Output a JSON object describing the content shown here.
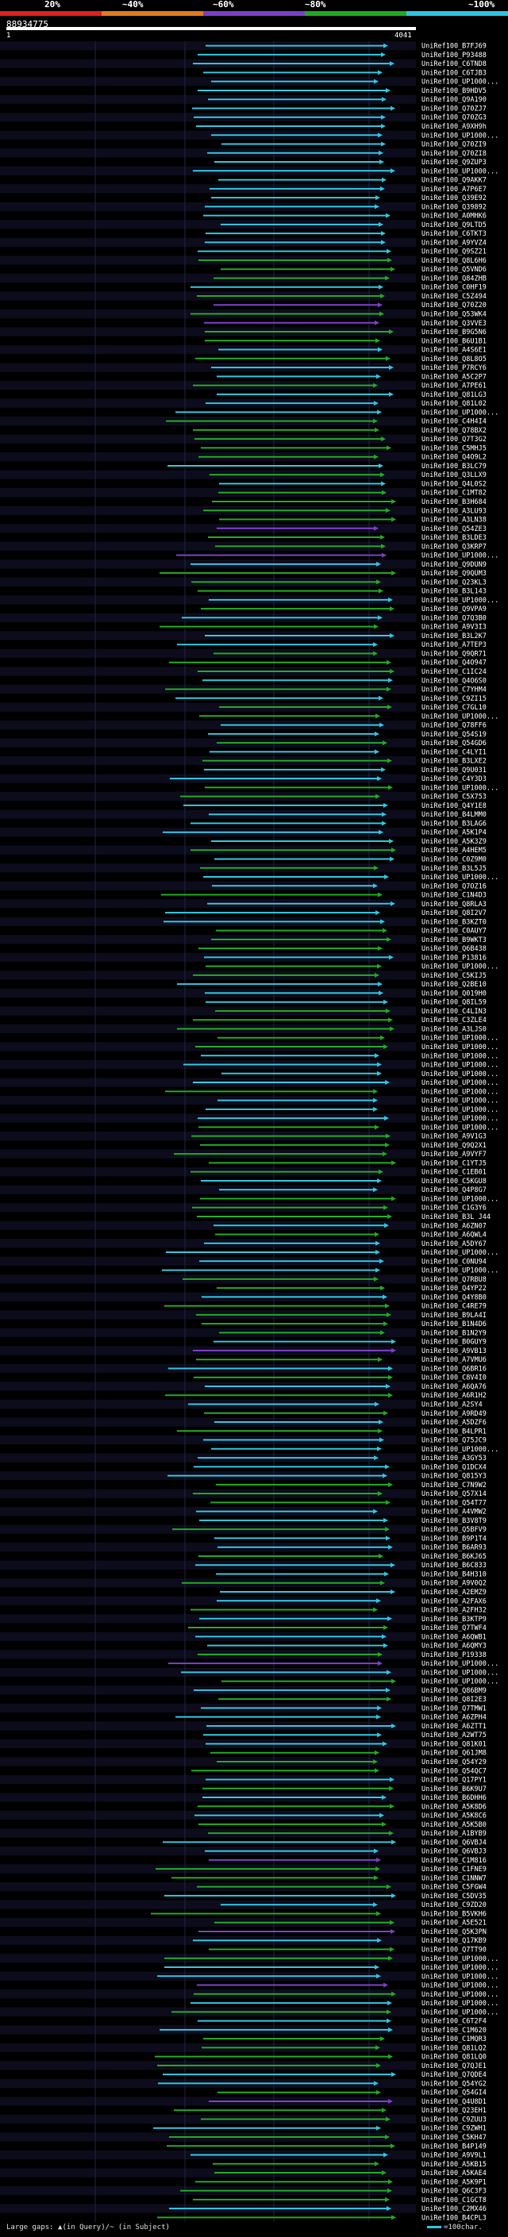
{
  "header": {
    "scale_labels": [
      "20%",
      "~40%",
      "~60%",
      "~80%",
      "~100%"
    ],
    "scale_colors": [
      "#e0201e",
      "#e07a1e",
      "#7a3fc8",
      "#22a822",
      "#2ec4e0"
    ],
    "query_id": "88934775",
    "axis_start": "1",
    "axis_end": "4041"
  },
  "footer": {
    "gaps_text": "Large gaps: ▲(in Query)/~ (in Subject)",
    "legend_text": "=100char."
  },
  "chart_data": {
    "type": "alignment-overview",
    "query_length": 4041,
    "x_range": [
      1,
      4041
    ],
    "identity_bins": [
      "<=20%",
      "~40%",
      "~60%",
      "~80%",
      "~100%"
    ],
    "hits": [
      "UniRef100_B7FJ69",
      "UniRef100_P93488",
      "UniRef100_C6TND8",
      "UniRef100_C6TJB3",
      "UniRef100_UP1000...",
      "UniRef100_B9HDV5",
      "UniRef100_Q9A190",
      "UniRef100_Q70ZJ7",
      "UniRef100_Q70ZG3",
      "UniRef100_A9XH9h",
      "UniRef100_UP1000...",
      "UniRef100_Q70ZI9",
      "UniRef100_Q70ZI8",
      "UniRef100_Q9ZUP3",
      "UniRef100_UP1000...",
      "UniRef100_Q9AKK7",
      "UniRef100_A7P6E7",
      "UniRef100_Q39E92",
      "UniRef100_Q39892",
      "UniRef100_A0MHK6",
      "UniRef100_Q9LTD5",
      "UniRef100_C6TKT3",
      "UniRef100_A9YVZ4",
      "UniRef100_Q9SZ21",
      "UniRef100_Q8L6H6",
      "UniRef100_Q5VND6",
      "UniRef100_Q84ZHB",
      "UniRef100_C0HF19",
      "UniRef100_C5Z494",
      "UniRef100_Q70Z20",
      "UniRef100_Q53WK4",
      "UniRef100_Q3VVE3",
      "UniRef100_B9G5N6",
      "UniRef100_B6U1B1",
      "UniRef100_A4S6E1",
      "UniRef100_Q8L8O5",
      "UniRef100_P7RCY6",
      "UniRef100_A5C2P7",
      "UniRef100_A7PE61",
      "UniRef100_Q81LG3",
      "UniRef100_Q81L02",
      "UniRef100_UP1000...",
      "UniRef100_C4H4I4",
      "UniRef100_Q78BX2",
      "UniRef100_Q7T3G2",
      "UniRef100_C5MHJ5",
      "UniRef100_Q4O9L2",
      "UniRef100_B3LC79",
      "UniRef100_Q3LLX9",
      "UniRef100_Q4L0S2",
      "UniRef100_C1MT82",
      "UniRef100_B3H684",
      "UniRef100_A3LU93",
      "UniRef100_A3LN38",
      "UniRef100_Q54ZE3",
      "UniRef100_B3LDE3",
      "UniRef100_Q3KRP7",
      "UniRef100_UP1000...",
      "UniRef100_Q9DUN9",
      "UniRef100_Q9QUM3",
      "UniRef100_Q23KL3",
      "UniRef100_B3L143",
      "UniRef100_UP1000...",
      "UniRef100_Q9VPA9",
      "UniRef100_Q7Q3B0",
      "UniRef100_A9V3I3",
      "UniRef100_B3L2K7",
      "UniRef100_A7TEP3",
      "UniRef100_Q9QR71",
      "UniRef100_Q4O947",
      "UniRef100_C1IC24",
      "UniRef100_Q4O6S0",
      "UniRef100_C7YHM4",
      "UniRef100_C9ZI15",
      "UniRef100_C7GL10",
      "UniRef100_UP1000...",
      "UniRef100_Q78FF6",
      "UniRef100_Q54S19",
      "UniRef100_Q54GD6",
      "UniRef100_C4LYI1",
      "UniRef100_B3LXE2",
      "UniRef100_Q9U031",
      "UniRef100_C4Y3D3",
      "UniRef100_UP1000...",
      "UniRef100_C5X753",
      "UniRef100_Q4Y1E8",
      "UniRef100_B4LMM0",
      "UniRef100_B3LAG6",
      "UniRef100_A5K1P4",
      "UniRef100_A5K3Z9",
      "UniRef100_A4HEM5",
      "UniRef100_C0Z9M0",
      "UniRef100_B3L5J5",
      "UniRef100_UP1000...",
      "UniRef100_Q7OZ16",
      "UniRef100_C1N4D3",
      "UniRef100_Q8RLA3",
      "UniRef100_Q8I2V7",
      "UniRef100_B3KZT0",
      "UniRef100_C0AUY7",
      "UniRef100_B9WKT3",
      "UniRef100_Q6B438",
      "UniRef100_P13816",
      "UniRef100_UP1000...",
      "UniRef100_C5KIJ5",
      "UniRef100_Q2BE10",
      "UniRef100_Q019H0",
      "UniRef100_Q8IL59",
      "UniRef100_C4LIN3",
      "UniRef100_C3ZLE4",
      "UniRef100_A3LJS0",
      "UniRef100_UP1000...",
      "UniRef100_UP1000...",
      "UniRef100_UP1000...",
      "UniRef100_UP1000...",
      "UniRef100_UP1000...",
      "UniRef100_UP1000...",
      "UniRef100_UP1000...",
      "UniRef100_UP1000...",
      "UniRef100_UP1000...",
      "UniRef100_UP1000...",
      "UniRef100_UP1000...",
      "UniRef100_A9V1G3",
      "UniRef100_Q9Q2X1",
      "UniRef100_A9VYF7",
      "UniRef100_C1YTJ5",
      "UniRef100_C1EB01",
      "UniRef100_C5KGU8",
      "UniRef100_Q4P8G7",
      "UniRef100_UP1000...",
      "UniRef100_C1G3Y6",
      "UniRef100_B3L J44",
      "UniRef100_A6ZN07",
      "UniRef100_A6QWL4",
      "UniRef100_A5DY67",
      "UniRef100_UP1000...",
      "UniRef100_C0NU94",
      "UniRef100_UP1000...",
      "UniRef100_Q7RBU8",
      "UniRef100_Q4YP22",
      "UniRef100_Q4Y8B0",
      "UniRef100_C4RE79",
      "UniRef100_B9LA4I",
      "UniRef100_B1N4D6",
      "UniRef100_B1N2Y9",
      "UniRef100_B0GUY9",
      "UniRef100_A9VB13",
      "UniRef100_A7VMU6",
      "UniRef100_Q6BR16",
      "UniRef100_C8V4I0",
      "UniRef100_A6QA76",
      "UniRef100_A6R1H2",
      "UniRef100_A2SY4",
      "UniRef100_A9RD49",
      "UniRef100_A5DZF6",
      "UniRef100_B4LPR1",
      "UniRef100_Q75JC9",
      "UniRef100_UP1000...",
      "UniRef100_A3GY53",
      "UniRef100_Q1DCX4",
      "UniRef100_Q815Y3",
      "UniRef100_C7N9W2",
      "UniRef100_Q57X14",
      "UniRef100_Q54T77",
      "UniRef100_A4VMW2",
      "UniRef100_B3V8T9",
      "UniRef100_Q5BFV9",
      "UniRef100_B9P1T4",
      "UniRef100_B6AR93",
      "UniRef100_B6KJ65",
      "UniRef100_B6C833",
      "UniRef100_B4H310",
      "UniRef100_A9V0Q2",
      "UniRef100_A2EMZ9",
      "UniRef100_A2FAX6",
      "UniRef100_A2FH32",
      "UniRef100_B3KTP9",
      "UniRef100_Q7TWF4",
      "UniRef100_A6QWB1",
      "UniRef100_A6QMY3",
      "UniRef100_P19338",
      "UniRef100_UP1000...",
      "UniRef100_UP1000...",
      "UniRef100_UP1000...",
      "UniRef100_Q86BM9",
      "UniRef100_Q8I2E3",
      "UniRef100_Q7TMW1",
      "UniRef100_A6ZPH4",
      "UniRef100_A6ZTT1",
      "UniRef100_A2WT75",
      "UniRef100_Q81K01",
      "UniRef100_Q61JM8",
      "UniRef100_Q54Y29",
      "UniRef100_Q54QC7",
      "UniRef100_Q17PY1",
      "UniRef100_B6K9U7",
      "UniRef100_B6DHH6",
      "UniRef100_A5K8D6",
      "UniRef100_A5K8C6",
      "UniRef100_A5K5B0",
      "UniRef100_A1BYB9",
      "UniRef100_Q6VBJ4",
      "UniRef100_Q6VBJ3",
      "UniRef100_C1M816",
      "UniRef100_C1FNE9",
      "UniRef100_C1NNW7",
      "UniRef100_C5FGW4",
      "UniRef100_C5DV35",
      "UniRef100_C9ZD20",
      "UniRef100_B5VKH6",
      "UniRef100_A5E521",
      "UniRef100_Q5K3PN",
      "UniRef100_Q17KB9",
      "UniRef100_Q7TT90",
      "UniRef100_UP1000...",
      "UniRef100_UP1000...",
      "UniRef100_UP1000...",
      "UniRef100_UP1000...",
      "UniRef100_UP1000...",
      "UniRef100_UP1000...",
      "UniRef100_UP1000...",
      "UniRef100_C6T2F4",
      "UniRef100_C1M620",
      "UniRef100_C1MQR3",
      "UniRef100_Q81LQ2",
      "UniRef100_Q81LQ0",
      "UniRef100_Q7QJE1",
      "UniRef100_Q7QDE4",
      "UniRef100_Q54YG2",
      "UniRef100_Q54GI4",
      "UniRef100_Q4U8D1",
      "UniRef100_Q23EH1",
      "UniRef100_C9ZUU3",
      "UniRef100_C9ZWH1",
      "UniRef100_C5KH47",
      "UniRef100_B4P149",
      "UniRef100_A9V9L1",
      "UniRef100_A5KB15",
      "UniRef100_A5KAE4",
      "UniRef100_A5K9P1",
      "UniRef100_Q6C3F3",
      "UniRef100_C1GCT8",
      "UniRef100_C2MX46",
      "UniRef100_B4CPL3"
    ]
  }
}
